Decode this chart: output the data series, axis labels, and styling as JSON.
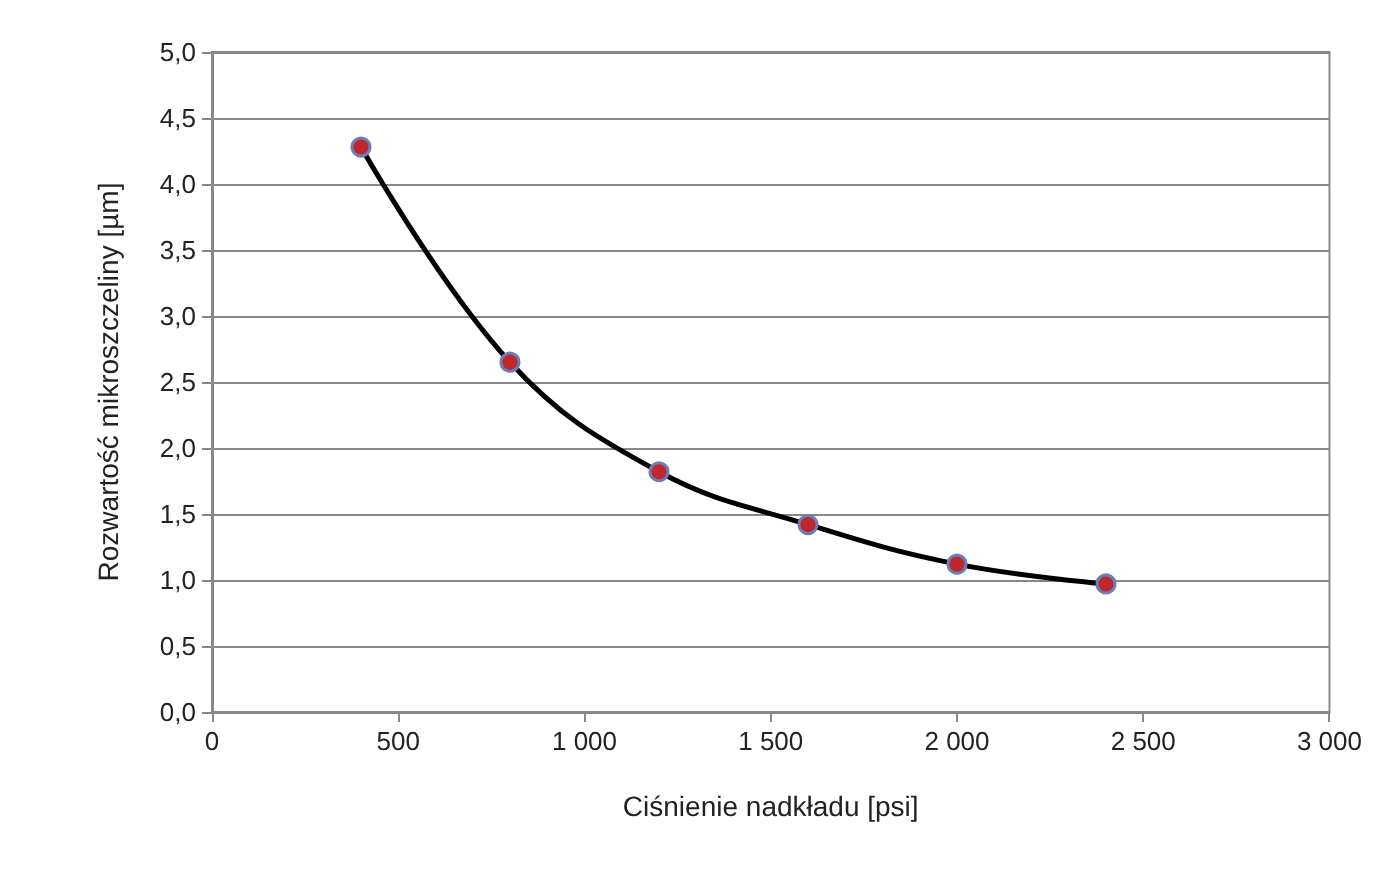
{
  "chart_data": {
    "type": "line",
    "xlabel": "Ciśnienie nadkładu [psi]",
    "ylabel": "Rozwartość mikroszczeliny [µm]",
    "x": [
      400,
      800,
      1200,
      1600,
      2000,
      2400
    ],
    "series": [
      {
        "color": "#000000",
        "colors": [
          "#c0262d",
          "#c0262d",
          "#c0262d",
          "#c0262d",
          "#c0262d",
          "#c0262d"
        ],
        "values": [
          4.28,
          2.65,
          1.82,
          1.42,
          1.12,
          0.97
        ]
      }
    ],
    "xlim": [
      0,
      3000
    ],
    "xticks": [
      0,
      500,
      {
        "value": 1000,
        "label": "1 000"
      },
      {
        "value": 1500,
        "label": "1 500"
      },
      {
        "value": 2000,
        "label": "2 000"
      },
      {
        "value": 2500,
        "label": "2 500"
      },
      {
        "value": 3000,
        "label": "3 000"
      }
    ],
    "ylim": [
      0,
      5
    ],
    "yticks": [
      {
        "value": 0,
        "label": "0,0"
      },
      {
        "value": 0.5,
        "label": "0,5"
      },
      {
        "value": 1,
        "label": "1,0"
      },
      {
        "value": 1.5,
        "label": "1,5"
      },
      {
        "value": 2,
        "label": "2,0"
      },
      {
        "value": 2.5,
        "label": "2,5"
      },
      {
        "value": 3,
        "label": "3,0"
      },
      {
        "value": 3.5,
        "label": "3,5"
      },
      {
        "value": 4,
        "label": "4,0"
      },
      {
        "value": 4.5,
        "label": "4,5"
      },
      {
        "value": 5,
        "label": "5,0"
      }
    ],
    "grid": "y",
    "marker": "circle"
  }
}
